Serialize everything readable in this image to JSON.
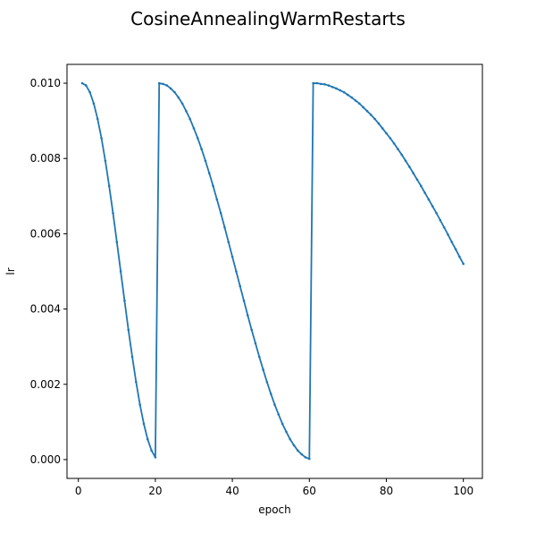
{
  "chart_data": {
    "type": "line",
    "title": "CosineAnnealingWarmRestarts",
    "xlabel": "epoch",
    "ylabel": "lr",
    "xlim": [
      -2.95,
      104.95
    ],
    "ylim": [
      -0.0005,
      0.0105
    ],
    "xticks": [
      {
        "value": 0,
        "label": "0"
      },
      {
        "value": 20,
        "label": "20"
      },
      {
        "value": 40,
        "label": "40"
      },
      {
        "value": 60,
        "label": "60"
      },
      {
        "value": 80,
        "label": "80"
      },
      {
        "value": 100,
        "label": "100"
      }
    ],
    "yticks": [
      {
        "value": 0.0,
        "label": "0.000"
      },
      {
        "value": 0.002,
        "label": "0.002"
      },
      {
        "value": 0.004,
        "label": "0.004"
      },
      {
        "value": 0.006,
        "label": "0.006"
      },
      {
        "value": 0.008,
        "label": "0.008"
      },
      {
        "value": 0.01,
        "label": "0.010"
      }
    ],
    "grid": false,
    "legend": "none",
    "series": [
      {
        "color": "#1f77b4",
        "marker": "small-dot",
        "x": [
          1,
          2,
          3,
          4,
          5,
          6,
          7,
          8,
          9,
          10,
          11,
          12,
          13,
          14,
          15,
          16,
          17,
          18,
          19,
          20,
          21,
          22,
          23,
          24,
          25,
          26,
          27,
          28,
          29,
          30,
          31,
          32,
          33,
          34,
          35,
          36,
          37,
          38,
          39,
          40,
          41,
          42,
          43,
          44,
          45,
          46,
          47,
          48,
          49,
          50,
          51,
          52,
          53,
          54,
          55,
          56,
          57,
          58,
          59,
          60,
          61,
          62,
          63,
          64,
          65,
          66,
          67,
          68,
          69,
          70,
          71,
          72,
          73,
          74,
          75,
          76,
          77,
          78,
          79,
          80,
          81,
          82,
          83,
          84,
          85,
          86,
          87,
          88,
          89,
          90,
          91,
          92,
          93,
          94,
          95,
          96,
          97,
          98,
          99,
          100
        ],
        "y": [
          0.01,
          0.00994,
          0.00976,
          0.00946,
          0.00905,
          0.00854,
          0.00794,
          0.00727,
          0.00655,
          0.00578,
          0.005,
          0.00422,
          0.00345,
          0.00273,
          0.00206,
          0.00146,
          0.00095,
          0.00054,
          0.00024,
          6e-05,
          0.01,
          0.00998,
          0.00994,
          0.00986,
          0.00976,
          0.00962,
          0.00946,
          0.00926,
          0.00905,
          0.0088,
          0.00854,
          0.00825,
          0.00794,
          0.00761,
          0.00727,
          0.00691,
          0.00655,
          0.00617,
          0.00578,
          0.00539,
          0.005,
          0.00461,
          0.00422,
          0.00383,
          0.00345,
          0.00309,
          0.00273,
          0.00239,
          0.00206,
          0.00175,
          0.00146,
          0.0012,
          0.00095,
          0.00074,
          0.00054,
          0.00038,
          0.00024,
          0.00014,
          6e-05,
          2e-05,
          0.01,
          0.01,
          0.00998,
          0.00997,
          0.00994,
          0.0099,
          0.00986,
          0.00981,
          0.00976,
          0.00969,
          0.00962,
          0.00954,
          0.00946,
          0.00936,
          0.00926,
          0.00916,
          0.00905,
          0.00893,
          0.0088,
          0.00867,
          0.00854,
          0.0084,
          0.00825,
          0.0081,
          0.00794,
          0.00778,
          0.00761,
          0.00744,
          0.00727,
          0.00709,
          0.00691,
          0.00673,
          0.00655,
          0.00636,
          0.00617,
          0.00598,
          0.00578,
          0.00559,
          0.00539,
          0.0052
        ]
      }
    ]
  },
  "colors": {
    "line": "#1f77b4",
    "axes": "#000000",
    "background": "#ffffff"
  }
}
